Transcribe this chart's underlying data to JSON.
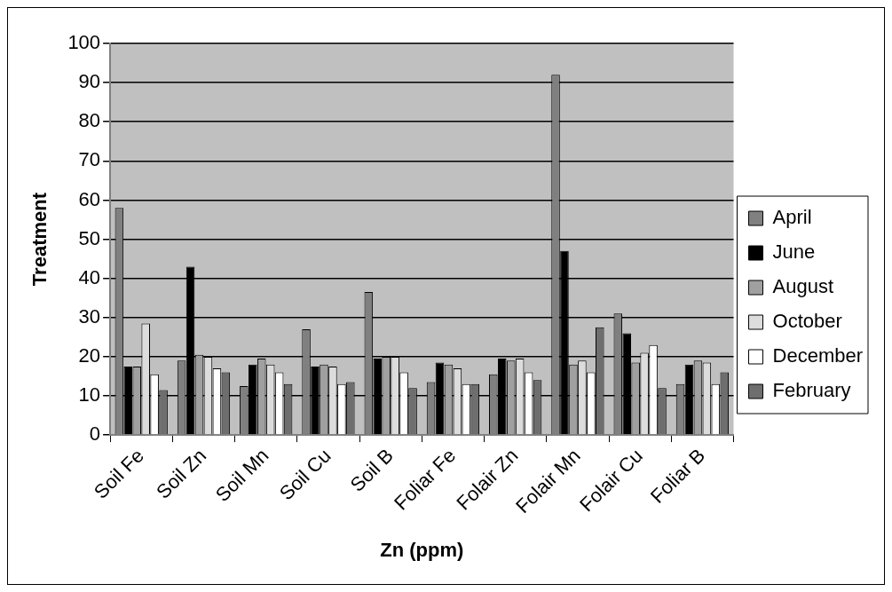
{
  "chart_data": {
    "type": "bar",
    "xlabel": "Zn (ppm)",
    "ylabel": "Treatment",
    "categories": [
      "Soil Fe",
      "Soil Zn",
      "Soil Mn",
      "Soil Cu",
      "Soil B",
      "Foliar Fe",
      "Folair Zn",
      "Folair Mn",
      "Folair Cu",
      "Foliar B"
    ],
    "series": [
      {
        "name": "April",
        "color": "#808080",
        "values": [
          58,
          19,
          12.5,
          27,
          36.5,
          13.5,
          15.5,
          92,
          31,
          13
        ]
      },
      {
        "name": "June",
        "color": "#000000",
        "values": [
          17.5,
          43,
          18,
          17.5,
          19.5,
          18.5,
          19.5,
          47,
          26,
          18
        ]
      },
      {
        "name": "August",
        "color": "#a0a0a0",
        "values": [
          17.5,
          20.5,
          19.5,
          18,
          20,
          18,
          19,
          18,
          18.5,
          19
        ]
      },
      {
        "name": "October",
        "color": "#dcdcdc",
        "values": [
          28.5,
          20,
          18,
          17.5,
          20,
          17,
          19.5,
          19,
          21,
          18.5
        ]
      },
      {
        "name": "December",
        "color": "#ffffff",
        "values": [
          15.5,
          17,
          16,
          13,
          16,
          13,
          16,
          16,
          23,
          13
        ]
      },
      {
        "name": "February",
        "color": "#6e6e6e",
        "values": [
          11.5,
          16,
          13,
          13.5,
          12,
          13,
          14,
          27.5,
          12,
          16
        ]
      }
    ],
    "ylim": [
      0,
      100
    ],
    "yticks": [
      0,
      10,
      20,
      30,
      40,
      50,
      60,
      70,
      80,
      90,
      100
    ],
    "grid": "y",
    "legend": "right"
  }
}
